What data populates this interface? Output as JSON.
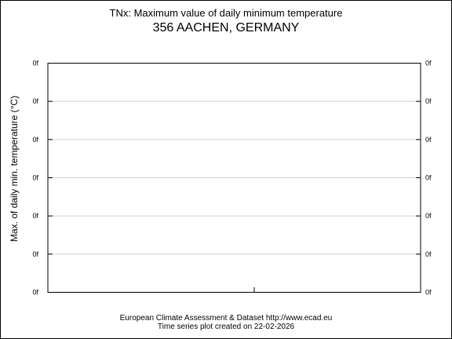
{
  "header": {
    "title": "TNx: Maximum value of daily minimum temperature",
    "station": "356 AACHEN, GERMANY"
  },
  "footer": {
    "line1": "European Climate Assessment & Dataset  http://www.ecad.eu",
    "line2": "Time series plot created on 22-02-2026"
  },
  "chart_data": {
    "type": "line",
    "title": "TNx: Maximum value of daily minimum temperature",
    "subtitle": "356 AACHEN, GERMANY",
    "ylabel": "Max. of daily min. temperature (°C)",
    "xlabel": "",
    "ytick_labels": [
      "0f",
      "0f",
      "0f",
      "0f",
      "0f",
      "0f",
      "0f"
    ],
    "ytick_labels_right": [
      "0f",
      "0f",
      "0f",
      "0f",
      "0f",
      "0f",
      "0f"
    ],
    "grid": true,
    "series": []
  }
}
